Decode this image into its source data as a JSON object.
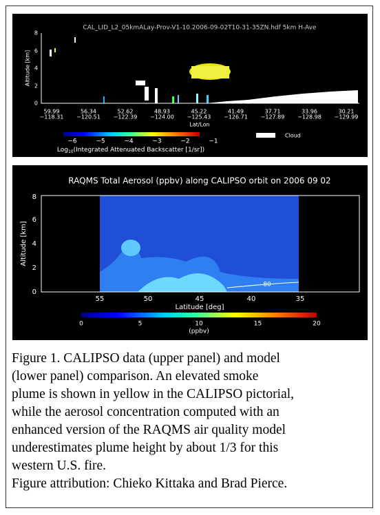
{
  "figure": {
    "upper_panel": {
      "title": "CAL_LID_L2_05kmALay-Prov-V1-10.2006-09-02T10-31-35ZN.hdf 5km H-Ave",
      "y_label": "Altitude [km]",
      "y_ticks": [
        "0",
        "2",
        "4",
        "6",
        "8"
      ],
      "x_ticks": [
        [
          "59.99",
          "−118.31"
        ],
        [
          "56.34",
          "−120.51"
        ],
        [
          "52.62",
          "−122.39"
        ],
        [
          "48.93",
          "−124.00"
        ],
        [
          "45.22",
          "−125.43"
        ],
        [
          "41.49",
          "−126.71"
        ],
        [
          "37.71",
          "−127.89"
        ],
        [
          "33.96",
          "−128.98"
        ],
        [
          "30.21",
          "−129.99"
        ]
      ],
      "x_label": "Lat/Lon",
      "colorbar_ticks": [
        "−6",
        "−5",
        "−4",
        "−3",
        "−2",
        "−1"
      ],
      "colorbar_label_prefix": "Log",
      "colorbar_label_subscript": "10",
      "colorbar_label_rest": "(Integrated Attenuated Backscatter [1/sr])",
      "legend_cloud": "Cloud"
    },
    "lower_panel": {
      "title": "RAQMS Total Aerosol (ppbv) along CALIPSO orbit on 2006 09 02",
      "y_label": "Altitude [km]",
      "y_ticks": [
        "0",
        "2",
        "4",
        "6",
        "8"
      ],
      "x_ticks": [
        "55",
        "50",
        "45",
        "40",
        "35"
      ],
      "x_label": "Latitude [deg]",
      "contour_label": "80",
      "colorbar_ticks": [
        "0",
        "5",
        "10",
        "15",
        "20"
      ],
      "colorbar_unit": "(ppbv)"
    },
    "caption_lines": [
      "Figure 1. CALIPSO data (upper panel) and model",
      "(lower panel) comparison. An elevated smoke",
      "plume is shown in yellow in the CALIPSO pictorial,",
      "while the aerosol concentration computed with an",
      "enhanced version of the RAQMS air quality model",
      "underestimates plume height by about 1/3 for this",
      "western U.S. fire.",
      "Figure attribution: Chieko Kittaka and Brad Pierce."
    ]
  }
}
